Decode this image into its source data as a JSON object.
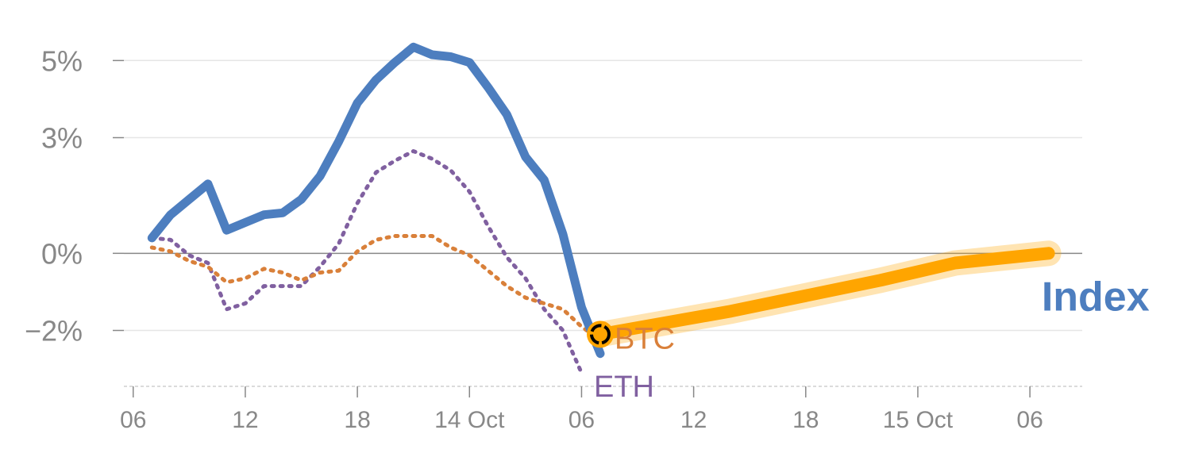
{
  "chart_data": {
    "type": "line",
    "title": "",
    "xlabel": "",
    "ylabel": "",
    "x_ticks": [
      {
        "x": 0,
        "label": "06"
      },
      {
        "x": 6,
        "label": "12"
      },
      {
        "x": 12,
        "label": "18"
      },
      {
        "x": 18,
        "label": "14 Oct"
      },
      {
        "x": 24,
        "label": "06"
      },
      {
        "x": 30,
        "label": "12"
      },
      {
        "x": 36,
        "label": "18"
      },
      {
        "x": 42,
        "label": "15 Oct"
      },
      {
        "x": 48,
        "label": "06"
      }
    ],
    "y_ticks": [
      {
        "y": 5,
        "label": "5%"
      },
      {
        "y": 3,
        "label": "3%"
      },
      {
        "y": 0,
        "label": "0%"
      },
      {
        "y": -2,
        "label": "−2%"
      }
    ],
    "xlim": [
      -0.5,
      50.8
    ],
    "ylim": [
      -3.45,
      5.85
    ],
    "series": [
      {
        "name": "Index",
        "color": "#4d7ebf",
        "style": "solid",
        "points": [
          [
            1,
            0.4
          ],
          [
            2,
            1.0
          ],
          [
            3,
            1.4
          ],
          [
            4,
            1.8
          ],
          [
            5,
            0.6
          ],
          [
            6,
            0.8
          ],
          [
            7,
            1.0
          ],
          [
            8,
            1.05
          ],
          [
            9,
            1.4
          ],
          [
            10,
            2.0
          ],
          [
            11,
            2.9
          ],
          [
            12,
            3.9
          ],
          [
            13,
            4.5
          ],
          [
            14,
            4.95
          ],
          [
            15,
            5.35
          ],
          [
            16,
            5.15
          ],
          [
            17,
            5.1
          ],
          [
            18,
            4.95
          ],
          [
            19,
            4.3
          ],
          [
            20,
            3.6
          ],
          [
            21,
            2.5
          ],
          [
            22,
            1.9
          ],
          [
            23,
            0.5
          ],
          [
            24,
            -1.4
          ],
          [
            25,
            -2.6
          ]
        ]
      },
      {
        "name": "BTC",
        "color": "#d9803a",
        "style": "dotted",
        "points": [
          [
            1,
            0.15
          ],
          [
            2,
            0.05
          ],
          [
            3,
            -0.2
          ],
          [
            4,
            -0.35
          ],
          [
            5,
            -0.75
          ],
          [
            6,
            -0.65
          ],
          [
            7,
            -0.4
          ],
          [
            8,
            -0.5
          ],
          [
            9,
            -0.7
          ],
          [
            10,
            -0.5
          ],
          [
            11,
            -0.45
          ],
          [
            12,
            0.05
          ],
          [
            13,
            0.35
          ],
          [
            14,
            0.45
          ],
          [
            15,
            0.45
          ],
          [
            16,
            0.45
          ],
          [
            17,
            0.15
          ],
          [
            18,
            -0.05
          ],
          [
            19,
            -0.45
          ],
          [
            20,
            -0.85
          ],
          [
            21,
            -1.15
          ],
          [
            22,
            -1.3
          ],
          [
            23,
            -1.45
          ],
          [
            24,
            -1.9
          ],
          [
            25,
            -2.25
          ]
        ]
      },
      {
        "name": "ETH",
        "color": "#8060a0",
        "style": "dotted",
        "points": [
          [
            1,
            0.4
          ],
          [
            2,
            0.35
          ],
          [
            3,
            -0.05
          ],
          [
            4,
            -0.25
          ],
          [
            5,
            -1.45
          ],
          [
            6,
            -1.3
          ],
          [
            7,
            -0.85
          ],
          [
            8,
            -0.85
          ],
          [
            9,
            -0.85
          ],
          [
            10,
            -0.35
          ],
          [
            11,
            0.25
          ],
          [
            12,
            1.3
          ],
          [
            13,
            2.1
          ],
          [
            14,
            2.4
          ],
          [
            15,
            2.65
          ],
          [
            16,
            2.45
          ],
          [
            17,
            2.15
          ],
          [
            18,
            1.6
          ],
          [
            19,
            0.7
          ],
          [
            20,
            -0.1
          ],
          [
            21,
            -0.65
          ],
          [
            22,
            -1.45
          ],
          [
            23,
            -2.0
          ],
          [
            24,
            -3.1
          ]
        ]
      },
      {
        "name": "forecast",
        "color": "#ffa500",
        "style": "band",
        "points": [
          [
            25,
            -2.1
          ],
          [
            32,
            -1.5
          ],
          [
            40,
            -0.7
          ],
          [
            44,
            -0.25
          ],
          [
            49,
            0
          ]
        ]
      }
    ],
    "marker": {
      "x": 25,
      "y": -2.1
    },
    "labels": [
      {
        "text": "BTC",
        "series": "BTC"
      },
      {
        "text": "ETH",
        "series": "ETH"
      },
      {
        "text": "Index",
        "series": "Index"
      }
    ],
    "grid": true,
    "legend": "none"
  }
}
